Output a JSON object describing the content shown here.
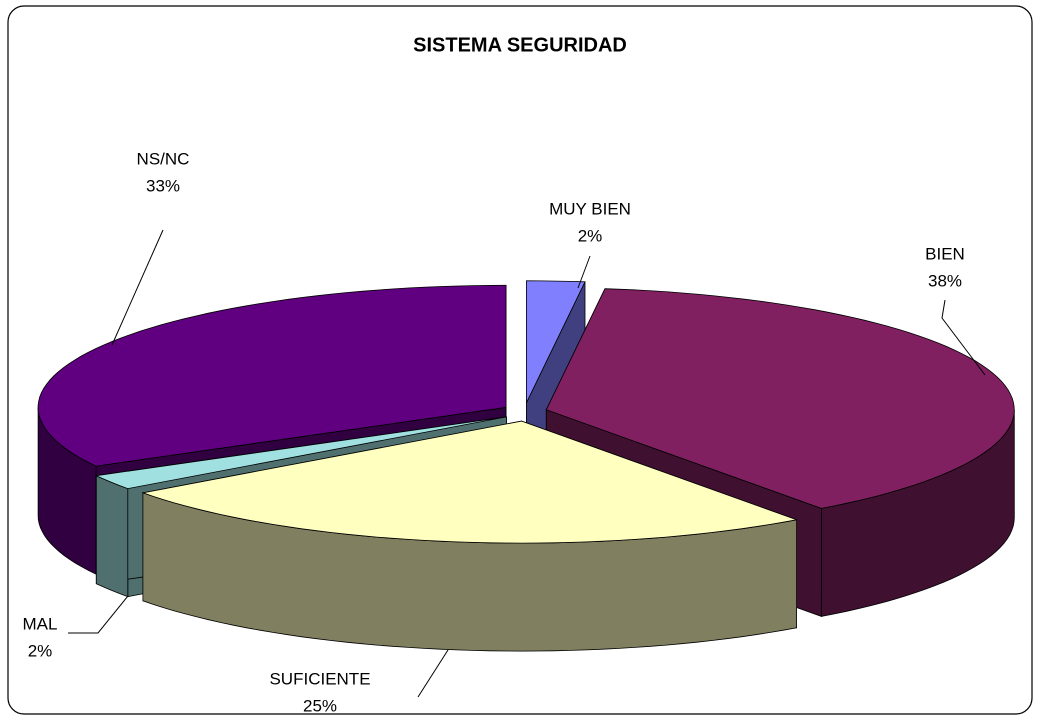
{
  "chart_data": {
    "type": "pie",
    "title": "SISTEMA SEGURIDAD",
    "categories": [
      "MUY BIEN",
      "BIEN",
      "SUFICIENTE",
      "MAL",
      "NS/NC"
    ],
    "values": [
      2,
      38,
      25,
      2,
      33
    ],
    "value_labels": [
      "2%",
      "38%",
      "25%",
      "2%",
      "33%"
    ],
    "colors": [
      "#8080ff",
      "#802060",
      "#ffffc0",
      "#a0e0e0",
      "#600080"
    ]
  }
}
